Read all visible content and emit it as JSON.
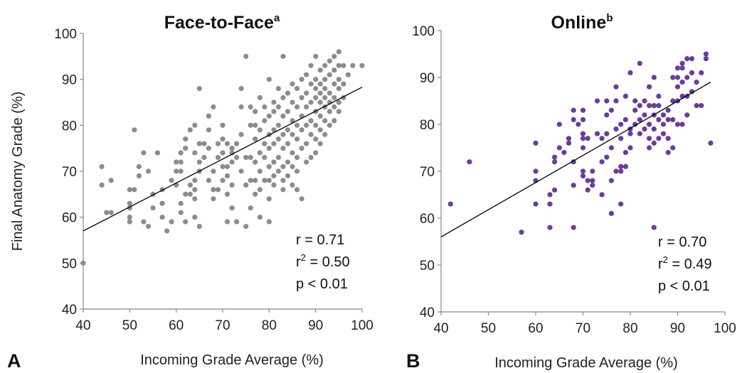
{
  "chart_data": [
    {
      "type": "scatter",
      "panel_label": "A",
      "title": "Face-to-Face",
      "title_superscript": "a",
      "xlabel": "Incoming Grade Average (%)",
      "ylabel": "Final Anatomy Grade (%)",
      "xlim": [
        40,
        100
      ],
      "ylim": [
        40,
        100
      ],
      "xticks": [
        40,
        50,
        60,
        70,
        80,
        90,
        100
      ],
      "yticks": [
        40,
        50,
        60,
        70,
        80,
        90,
        100
      ],
      "grid": false,
      "color": "#8c8c8c",
      "trendline": {
        "x": [
          40,
          100
        ],
        "y": [
          57,
          88.3
        ]
      },
      "stats": {
        "r": "r = 0.71",
        "r2_prefix": "r",
        "r2_suffix": " = 0.50",
        "p": "p < 0.01"
      },
      "points": [
        [
          40,
          50
        ],
        [
          44,
          67
        ],
        [
          44,
          71
        ],
        [
          45,
          61
        ],
        [
          46,
          61
        ],
        [
          46,
          68
        ],
        [
          50,
          59
        ],
        [
          50,
          60
        ],
        [
          50,
          62
        ],
        [
          50,
          63
        ],
        [
          50,
          66
        ],
        [
          51,
          66
        ],
        [
          51,
          79
        ],
        [
          52,
          69
        ],
        [
          52,
          71
        ],
        [
          53,
          59
        ],
        [
          53,
          74
        ],
        [
          54,
          58
        ],
        [
          54,
          70
        ],
        [
          55,
          62
        ],
        [
          55,
          65
        ],
        [
          56,
          74
        ],
        [
          57,
          60
        ],
        [
          57,
          63
        ],
        [
          57,
          66
        ],
        [
          58,
          57
        ],
        [
          59,
          59
        ],
        [
          59,
          68
        ],
        [
          60,
          67
        ],
        [
          60,
          70
        ],
        [
          60,
          72
        ],
        [
          61,
          61
        ],
        [
          61,
          63
        ],
        [
          61,
          70
        ],
        [
          61,
          72
        ],
        [
          61,
          74
        ],
        [
          62,
          59
        ],
        [
          62,
          65
        ],
        [
          62,
          75
        ],
        [
          62,
          77
        ],
        [
          63,
          65
        ],
        [
          63,
          67
        ],
        [
          63,
          79
        ],
        [
          64,
          60
        ],
        [
          64,
          64
        ],
        [
          64,
          66
        ],
        [
          64,
          68
        ],
        [
          64,
          74
        ],
        [
          64,
          80
        ],
        [
          65,
          58
        ],
        [
          65,
          70
        ],
        [
          65,
          72
        ],
        [
          65,
          76
        ],
        [
          65,
          88
        ],
        [
          66,
          73
        ],
        [
          66,
          76
        ],
        [
          67,
          68
        ],
        [
          67,
          75
        ],
        [
          67,
          79
        ],
        [
          67,
          82
        ],
        [
          68,
          64
        ],
        [
          68,
          66
        ],
        [
          68,
          70
        ],
        [
          68,
          84
        ],
        [
          69,
          66
        ],
        [
          69,
          73
        ],
        [
          69,
          76
        ],
        [
          70,
          68
        ],
        [
          70,
          71
        ],
        [
          70,
          74
        ],
        [
          70,
          77
        ],
        [
          70,
          80
        ],
        [
          71,
          59
        ],
        [
          71,
          65
        ],
        [
          71,
          69
        ],
        [
          71,
          71
        ],
        [
          71,
          76
        ],
        [
          72,
          62
        ],
        [
          72,
          67
        ],
        [
          72,
          72
        ],
        [
          72,
          74
        ],
        [
          72,
          75
        ],
        [
          73,
          59
        ],
        [
          73,
          73
        ],
        [
          73,
          76
        ],
        [
          74,
          70
        ],
        [
          74,
          78
        ],
        [
          74,
          84
        ],
        [
          74,
          88
        ],
        [
          75,
          58
        ],
        [
          75,
          67
        ],
        [
          75,
          73
        ],
        [
          75,
          95
        ],
        [
          76,
          62
        ],
        [
          76,
          68
        ],
        [
          76,
          73
        ],
        [
          76,
          80
        ],
        [
          76,
          84
        ],
        [
          77,
          65
        ],
        [
          77,
          68
        ],
        [
          77,
          72
        ],
        [
          77,
          77
        ],
        [
          77,
          80
        ],
        [
          77,
          83
        ],
        [
          78,
          60
        ],
        [
          78,
          66
        ],
        [
          78,
          70
        ],
        [
          78,
          74
        ],
        [
          78,
          79
        ],
        [
          78,
          86
        ],
        [
          79,
          68
        ],
        [
          79,
          73
        ],
        [
          79,
          76
        ],
        [
          79,
          81
        ],
        [
          79,
          84
        ],
        [
          80,
          59
        ],
        [
          80,
          64
        ],
        [
          80,
          68
        ],
        [
          80,
          71
        ],
        [
          80,
          75
        ],
        [
          80,
          78
        ],
        [
          80,
          82
        ],
        [
          80,
          90
        ],
        [
          81,
          67
        ],
        [
          81,
          69
        ],
        [
          81,
          72
        ],
        [
          81,
          76
        ],
        [
          81,
          79
        ],
        [
          81,
          83
        ],
        [
          81,
          85
        ],
        [
          82,
          70
        ],
        [
          82,
          73
        ],
        [
          82,
          77
        ],
        [
          82,
          80
        ],
        [
          82,
          84
        ],
        [
          82,
          88
        ],
        [
          83,
          66
        ],
        [
          83,
          68
        ],
        [
          83,
          71
        ],
        [
          83,
          75
        ],
        [
          83,
          78
        ],
        [
          83,
          82
        ],
        [
          83,
          86
        ],
        [
          83,
          95
        ],
        [
          84,
          69
        ],
        [
          84,
          72
        ],
        [
          84,
          76
        ],
        [
          84,
          79
        ],
        [
          84,
          83
        ],
        [
          84,
          87
        ],
        [
          85,
          67
        ],
        [
          85,
          71
        ],
        [
          85,
          74
        ],
        [
          85,
          78
        ],
        [
          85,
          81
        ],
        [
          85,
          85
        ],
        [
          85,
          89
        ],
        [
          86,
          66
        ],
        [
          86,
          70
        ],
        [
          86,
          73
        ],
        [
          86,
          77
        ],
        [
          86,
          80
        ],
        [
          86,
          84
        ],
        [
          86,
          88
        ],
        [
          87,
          64
        ],
        [
          87,
          75
        ],
        [
          87,
          79
        ],
        [
          87,
          82
        ],
        [
          87,
          86
        ],
        [
          87,
          90
        ],
        [
          88,
          72
        ],
        [
          88,
          76
        ],
        [
          88,
          80
        ],
        [
          88,
          84
        ],
        [
          88,
          87
        ],
        [
          88,
          91
        ],
        [
          89,
          73
        ],
        [
          89,
          78
        ],
        [
          89,
          81
        ],
        [
          89,
          85
        ],
        [
          89,
          89
        ],
        [
          89,
          93
        ],
        [
          90,
          74
        ],
        [
          90,
          77
        ],
        [
          90,
          80
        ],
        [
          90,
          83
        ],
        [
          90,
          86
        ],
        [
          90,
          88
        ],
        [
          90,
          90
        ],
        [
          90,
          95
        ],
        [
          91,
          76
        ],
        [
          91,
          79
        ],
        [
          91,
          82
        ],
        [
          91,
          85
        ],
        [
          91,
          87
        ],
        [
          91,
          89
        ],
        [
          91,
          92
        ],
        [
          92,
          78
        ],
        [
          92,
          81
        ],
        [
          92,
          84
        ],
        [
          92,
          86
        ],
        [
          92,
          88
        ],
        [
          92,
          90
        ],
        [
          92,
          93
        ],
        [
          93,
          80
        ],
        [
          93,
          83
        ],
        [
          93,
          85
        ],
        [
          93,
          87
        ],
        [
          93,
          91
        ],
        [
          93,
          94
        ],
        [
          94,
          81
        ],
        [
          94,
          84
        ],
        [
          94,
          86
        ],
        [
          94,
          89
        ],
        [
          94,
          92
        ],
        [
          94,
          95
        ],
        [
          95,
          83
        ],
        [
          95,
          85
        ],
        [
          95,
          88
        ],
        [
          95,
          90
        ],
        [
          95,
          93
        ],
        [
          95,
          96
        ],
        [
          96,
          86
        ],
        [
          96,
          89
        ],
        [
          96,
          93
        ],
        [
          97,
          91
        ],
        [
          98,
          93
        ],
        [
          100,
          93
        ]
      ]
    },
    {
      "type": "scatter",
      "panel_label": "B",
      "title": "Online",
      "title_superscript": "b",
      "xlabel": "Incoming Grade Average (%)",
      "ylabel": "",
      "xlim": [
        40,
        100
      ],
      "ylim": [
        40,
        100
      ],
      "xticks": [
        40,
        50,
        60,
        70,
        80,
        90,
        100
      ],
      "yticks": [
        40,
        50,
        60,
        70,
        80,
        90,
        100
      ],
      "grid": false,
      "color": "#6a3d9a",
      "trendline": {
        "x": [
          40,
          97
        ],
        "y": [
          56,
          89
        ]
      },
      "stats": {
        "r": "r = 0.70",
        "r2_prefix": "r",
        "r2_suffix": " = 0.49",
        "p": "p < 0.01"
      },
      "points": [
        [
          42,
          63
        ],
        [
          46,
          72
        ],
        [
          57,
          57
        ],
        [
          60,
          63
        ],
        [
          60,
          68
        ],
        [
          60,
          70
        ],
        [
          60,
          76
        ],
        [
          63,
          58
        ],
        [
          63,
          63
        ],
        [
          63,
          65
        ],
        [
          64,
          66
        ],
        [
          64,
          72
        ],
        [
          64,
          73
        ],
        [
          65,
          75
        ],
        [
          65,
          80
        ],
        [
          66,
          74
        ],
        [
          67,
          76
        ],
        [
          67,
          77
        ],
        [
          68,
          58
        ],
        [
          68,
          67
        ],
        [
          68,
          72
        ],
        [
          68,
          81
        ],
        [
          68,
          83
        ],
        [
          69,
          80
        ],
        [
          70,
          69
        ],
        [
          70,
          70
        ],
        [
          70,
          75
        ],
        [
          70,
          77
        ],
        [
          70,
          78
        ],
        [
          70,
          81
        ],
        [
          70,
          83
        ],
        [
          71,
          66
        ],
        [
          71,
          68
        ],
        [
          71,
          77
        ],
        [
          72,
          67
        ],
        [
          72,
          68
        ],
        [
          72,
          70
        ],
        [
          73,
          78
        ],
        [
          73,
          85
        ],
        [
          74,
          65
        ],
        [
          74,
          72
        ],
        [
          74,
          77
        ],
        [
          75,
          73
        ],
        [
          75,
          78
        ],
        [
          75,
          82
        ],
        [
          75,
          85
        ],
        [
          76,
          61
        ],
        [
          76,
          68
        ],
        [
          76,
          75
        ],
        [
          76,
          83
        ],
        [
          77,
          70
        ],
        [
          77,
          79
        ],
        [
          77,
          85
        ],
        [
          77,
          88
        ],
        [
          78,
          63
        ],
        [
          78,
          70
        ],
        [
          78,
          71
        ],
        [
          78,
          77
        ],
        [
          78,
          80
        ],
        [
          79,
          71
        ],
        [
          79,
          74
        ],
        [
          79,
          81
        ],
        [
          79,
          86
        ],
        [
          80,
          75
        ],
        [
          80,
          78
        ],
        [
          80,
          79
        ],
        [
          80,
          91
        ],
        [
          81,
          80
        ],
        [
          81,
          83
        ],
        [
          81,
          85
        ],
        [
          82,
          78
        ],
        [
          82,
          81
        ],
        [
          82,
          84
        ],
        [
          82,
          93
        ],
        [
          83,
          79
        ],
        [
          83,
          82
        ],
        [
          83,
          85
        ],
        [
          84,
          75
        ],
        [
          84,
          77
        ],
        [
          84,
          80
        ],
        [
          84,
          84
        ],
        [
          84,
          88
        ],
        [
          85,
          58
        ],
        [
          85,
          76
        ],
        [
          85,
          79
        ],
        [
          85,
          82
        ],
        [
          85,
          84
        ],
        [
          85,
          90
        ],
        [
          86,
          77
        ],
        [
          86,
          81
        ],
        [
          86,
          84
        ],
        [
          86,
          86
        ],
        [
          87,
          78
        ],
        [
          87,
          80
        ],
        [
          87,
          82
        ],
        [
          88,
          74
        ],
        [
          88,
          77
        ],
        [
          88,
          81
        ],
        [
          88,
          83
        ],
        [
          89,
          75
        ],
        [
          89,
          81
        ],
        [
          89,
          85
        ],
        [
          89,
          90
        ],
        [
          90,
          80
        ],
        [
          90,
          85
        ],
        [
          90,
          88
        ],
        [
          90,
          90
        ],
        [
          90,
          92
        ],
        [
          91,
          80
        ],
        [
          91,
          86
        ],
        [
          91,
          89
        ],
        [
          91,
          92
        ],
        [
          91,
          93
        ],
        [
          92,
          82
        ],
        [
          92,
          86
        ],
        [
          92,
          90
        ],
        [
          92,
          94
        ],
        [
          93,
          87
        ],
        [
          93,
          91
        ],
        [
          93,
          94
        ],
        [
          94,
          84
        ],
        [
          94,
          89
        ],
        [
          95,
          84
        ],
        [
          95,
          91
        ],
        [
          96,
          94
        ],
        [
          96,
          95
        ],
        [
          97,
          76
        ]
      ]
    }
  ]
}
